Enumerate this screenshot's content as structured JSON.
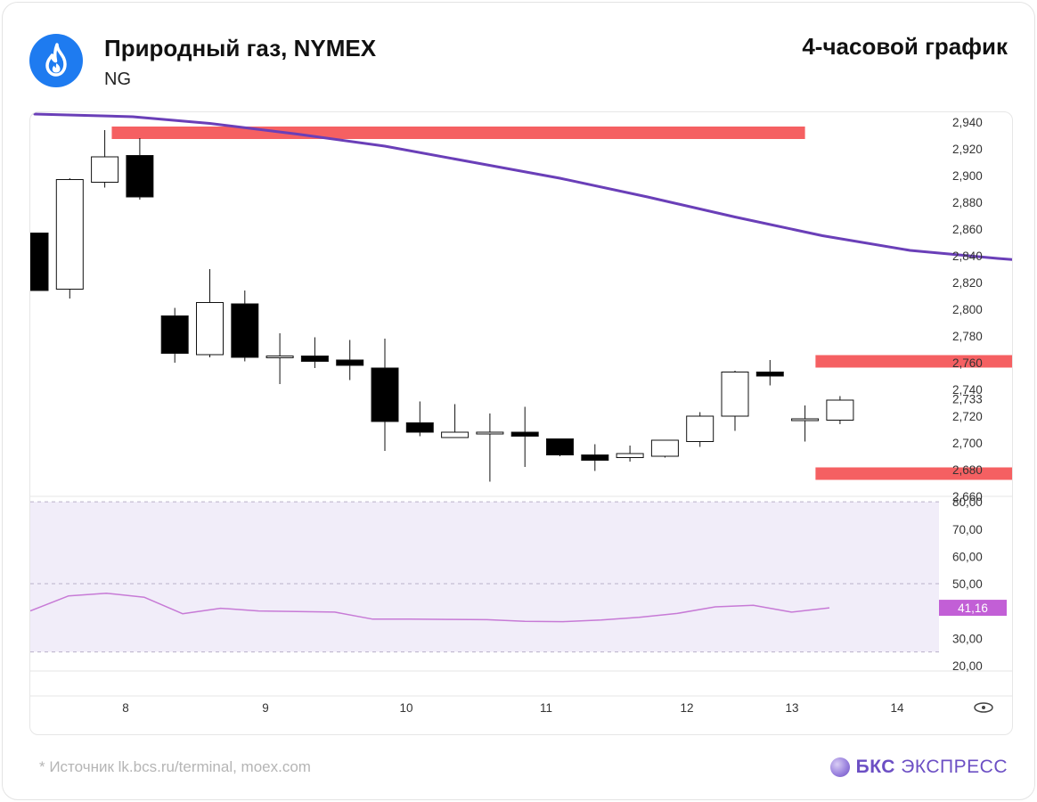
{
  "header": {
    "title": "Природный газ, NYMEX",
    "ticker": "NG",
    "period": "4-часовой график",
    "logo_icon": "flame-icon"
  },
  "footer": {
    "source": "* Источник lk.bcs.ru/terminal, moex.com",
    "brand_bold": "БКС",
    "brand_rest": " ЭКСПРЕСС"
  },
  "colors": {
    "moving_average": "#6a3fb8",
    "level_zones": "#f56062",
    "oscillator_line": "#c77ad6",
    "oscillator_band": "#f1edf9",
    "oscillator_badge": "#c25fd6",
    "logo": "#1e7bf0"
  },
  "chart_data": [
    {
      "type": "candlestick",
      "ylim": [
        2.66,
        2.946
      ],
      "y_ticks": [
        "2,940",
        "2,920",
        "2,900",
        "2,880",
        "2,860",
        "2,840",
        "2,820",
        "2,800",
        "2,780",
        "2,760",
        "2,740",
        "2,733",
        "2,720",
        "2,700",
        "2,680",
        "2,660"
      ],
      "x_tick_labels": [
        "8",
        "9",
        "10",
        "11",
        "12",
        "13",
        "14"
      ],
      "candles": [
        {
          "o": 2.857,
          "h": 2.857,
          "l": 2.814,
          "c": 2.814
        },
        {
          "o": 2.815,
          "h": 2.898,
          "l": 2.808,
          "c": 2.897
        },
        {
          "o": 2.895,
          "h": 2.934,
          "l": 2.891,
          "c": 2.914
        },
        {
          "o": 2.915,
          "h": 2.928,
          "l": 2.882,
          "c": 2.884
        },
        {
          "o": 2.795,
          "h": 2.801,
          "l": 2.76,
          "c": 2.767
        },
        {
          "o": 2.766,
          "h": 2.83,
          "l": 2.764,
          "c": 2.805
        },
        {
          "o": 2.804,
          "h": 2.814,
          "l": 2.761,
          "c": 2.764
        },
        {
          "o": 2.764,
          "h": 2.782,
          "l": 2.744,
          "c": 2.765
        },
        {
          "o": 2.765,
          "h": 2.779,
          "l": 2.756,
          "c": 2.761
        },
        {
          "o": 2.762,
          "h": 2.777,
          "l": 2.747,
          "c": 2.758
        },
        {
          "o": 2.756,
          "h": 2.778,
          "l": 2.694,
          "c": 2.716
        },
        {
          "o": 2.715,
          "h": 2.731,
          "l": 2.705,
          "c": 2.708
        },
        {
          "o": 2.704,
          "h": 2.729,
          "l": 2.704,
          "c": 2.708
        },
        {
          "o": 2.707,
          "h": 2.722,
          "l": 2.671,
          "c": 2.708
        },
        {
          "o": 2.708,
          "h": 2.727,
          "l": 2.682,
          "c": 2.705
        },
        {
          "o": 2.703,
          "h": 2.703,
          "l": 2.69,
          "c": 2.691
        },
        {
          "o": 2.691,
          "h": 2.699,
          "l": 2.679,
          "c": 2.687
        },
        {
          "o": 2.689,
          "h": 2.698,
          "l": 2.686,
          "c": 2.692
        },
        {
          "o": 2.69,
          "h": 2.702,
          "l": 2.689,
          "c": 2.702
        },
        {
          "o": 2.701,
          "h": 2.723,
          "l": 2.697,
          "c": 2.72
        },
        {
          "o": 2.72,
          "h": 2.754,
          "l": 2.709,
          "c": 2.753
        },
        {
          "o": 2.753,
          "h": 2.762,
          "l": 2.743,
          "c": 2.75
        },
        {
          "o": 2.717,
          "h": 2.728,
          "l": 2.701,
          "c": 2.718
        },
        {
          "o": 2.717,
          "h": 2.735,
          "l": 2.714,
          "c": 2.732
        }
      ],
      "moving_average": [
        [
          0,
          2.946
        ],
        [
          2.8,
          2.944
        ],
        [
          5,
          2.939
        ],
        [
          7.5,
          2.931
        ],
        [
          10,
          2.922
        ],
        [
          12.5,
          2.91
        ],
        [
          15,
          2.898
        ],
        [
          17.5,
          2.884
        ],
        [
          20,
          2.869
        ],
        [
          22.5,
          2.855
        ],
        [
          25,
          2.844
        ],
        [
          27.5,
          2.838
        ],
        [
          30,
          2.833
        ],
        [
          32.5,
          2.828
        ]
      ],
      "zones": [
        {
          "from": 2.2,
          "to": 22,
          "value": 2.932
        },
        {
          "from": 22.3,
          "to": 38.1,
          "value": 2.761
        },
        {
          "from": 22.3,
          "to": 37.9,
          "value": 2.677
        }
      ]
    },
    {
      "type": "line",
      "ylim": [
        18,
        82
      ],
      "y_ticks": [
        "80,00",
        "70,00",
        "60,00",
        "50,00",
        "30,00",
        "20,00"
      ],
      "band": [
        25,
        80
      ],
      "midline": 50,
      "current_value": "41,16",
      "values": [
        40.0,
        45.5,
        46.5,
        45.0,
        39.0,
        41.0,
        40.0,
        39.8,
        39.6,
        37.0,
        37.0,
        36.9,
        36.8,
        36.2,
        36.1,
        36.7,
        37.7,
        39.1,
        41.5,
        42.1,
        39.6,
        41.16
      ]
    }
  ]
}
